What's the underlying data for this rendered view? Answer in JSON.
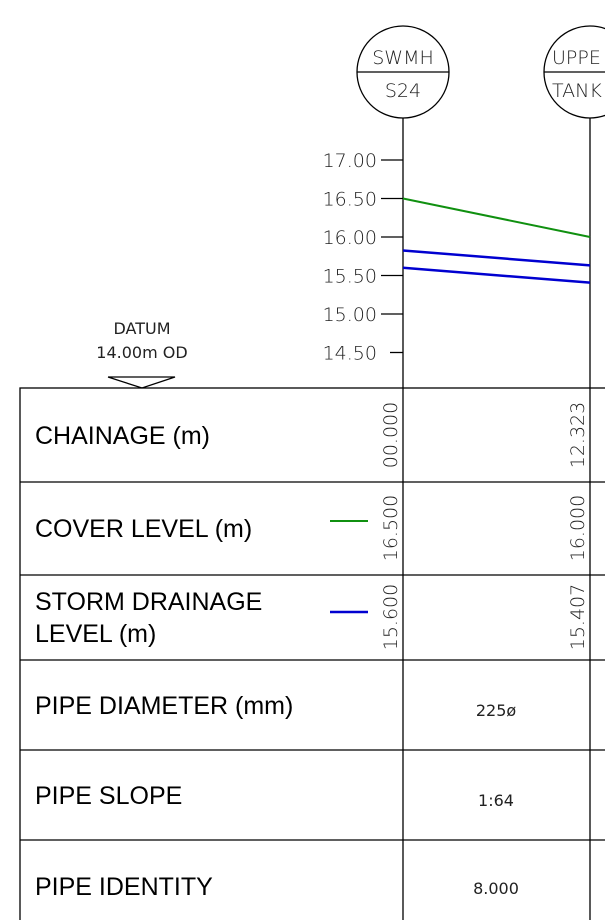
{
  "manholes": [
    {
      "line1": "SWMH",
      "line2": "S24"
    },
    {
      "line1": "UPPE",
      "line2": "TANK"
    }
  ],
  "datum": {
    "title": "DATUM",
    "level_label": "14.00m OD",
    "level": 14
  },
  "level_axis": {
    "ylim": [
      14,
      17
    ],
    "yticks": [
      {
        "value": 17,
        "label": "17.00"
      },
      {
        "value": 16.5,
        "label": "16.50"
      },
      {
        "value": 16,
        "label": "16.00"
      },
      {
        "value": 15.5,
        "label": "15.50"
      },
      {
        "value": 15,
        "label": "15.00"
      },
      {
        "value": 14.5,
        "label": "14.50"
      }
    ]
  },
  "table": {
    "chainage": {
      "label": "CHAINAGE (m)",
      "values": [
        0,
        12.323
      ],
      "value_labels": [
        "00.000",
        "12.323"
      ]
    },
    "cover_level": {
      "label": "COVER LEVEL (m)",
      "color": "#109010",
      "values": [
        16.5,
        16.0
      ],
      "value_labels": [
        "16.500",
        "16.000"
      ]
    },
    "storm_drainage_level": {
      "label_lines": [
        "STORM DRAINAGE",
        "LEVEL (m)"
      ],
      "color": "#0000d0",
      "values": [
        15.6,
        15.407
      ],
      "value_labels": [
        "15.600",
        "15.407"
      ]
    },
    "pipe_diameter": {
      "label": "PIPE DIAMETER (mm)",
      "value": 225,
      "value_label": "225ø"
    },
    "pipe_slope": {
      "label": "PIPE SLOPE",
      "value_label": "1:64"
    },
    "pipe_identity": {
      "label": "PIPE IDENTITY",
      "value_label": "8.000"
    }
  }
}
